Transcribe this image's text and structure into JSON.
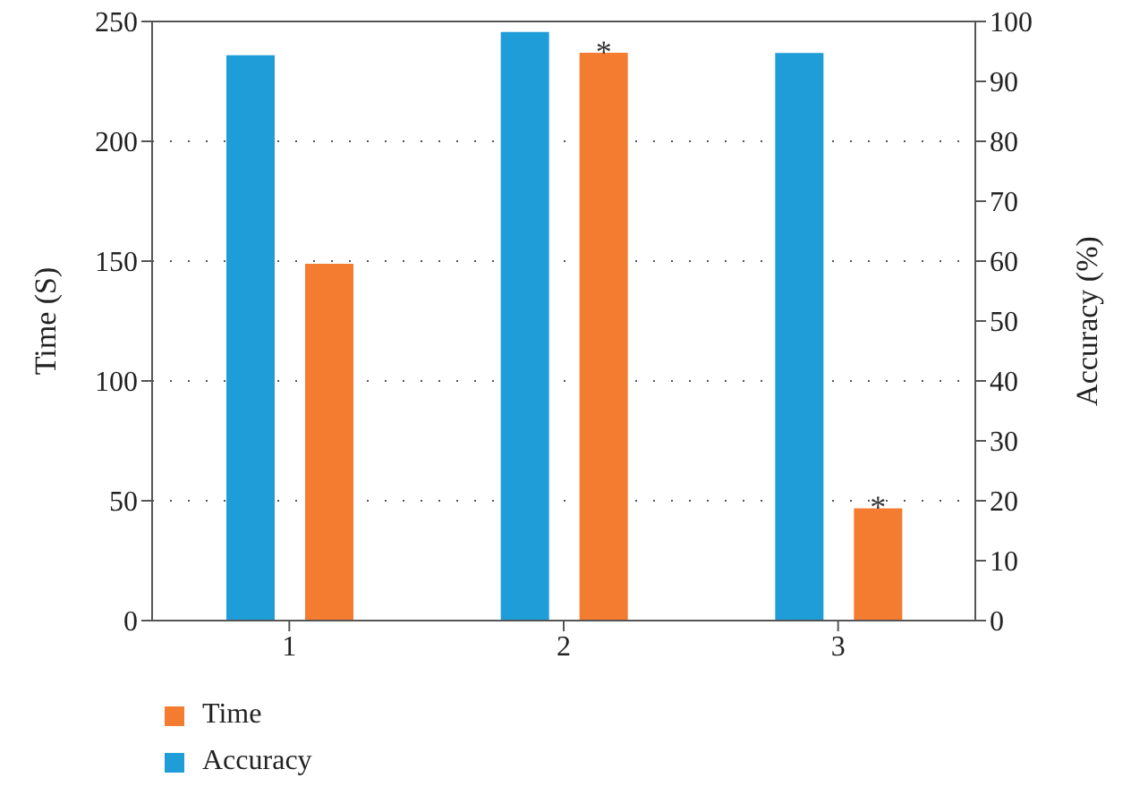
{
  "chart_data": {
    "type": "bar",
    "categories": [
      "1",
      "2",
      "3"
    ],
    "ylabel": "Time (S)",
    "y2label": "Accuracy (%)",
    "series": [
      {
        "name": "Time",
        "color": "#f47c30",
        "values": [
          148.5,
          236.6,
          46.5
        ],
        "value_labels": [
          null,
          "*",
          "*"
        ]
      },
      {
        "name": "Accuracy",
        "color": "#1f9dd9",
        "values": [
          94.2,
          98.1,
          94.6
        ],
        "axis": "y2"
      }
    ],
    "ylim": [
      0,
      250
    ],
    "yticks": [
      0,
      50,
      100,
      150,
      200,
      250
    ],
    "y2lim": [
      0,
      100
    ],
    "y2ticks": [
      0,
      10,
      20,
      30,
      40,
      50,
      60,
      70,
      80,
      90,
      100
    ],
    "grid": "y",
    "legend": "bottom left"
  }
}
